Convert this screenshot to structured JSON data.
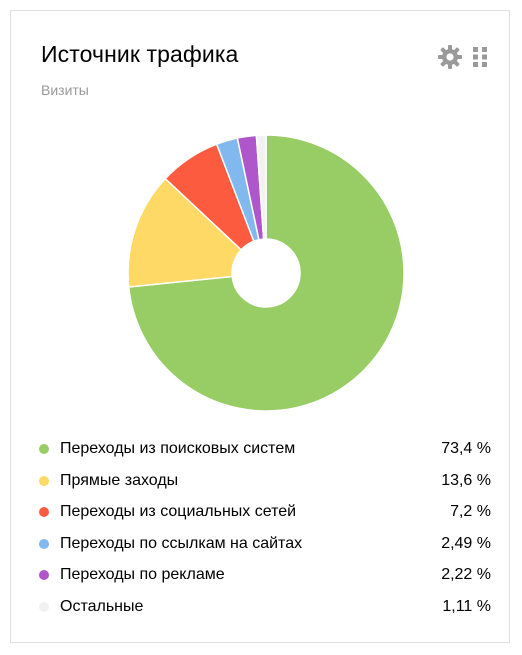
{
  "widget": {
    "title": "Источник трафика",
    "subtitle": "Визиты",
    "settings_icon": "gear-icon",
    "drag_icon": "drag-handle-icon"
  },
  "chart_data": {
    "type": "pie",
    "donut": true,
    "start_angle_deg": 0,
    "direction": "clockwise",
    "categories": [
      "Переходы из поисковых систем",
      "Прямые заходы",
      "Переходы из социальных сетей",
      "Переходы по ссылкам на сайтах",
      "Переходы по рекламе",
      "Остальные"
    ],
    "values": [
      73.4,
      13.6,
      7.2,
      2.49,
      2.22,
      1.11
    ],
    "value_labels": [
      "73,4 %",
      "13,6 %",
      "7,2 %",
      "2,49 %",
      "2,22 %",
      "1,11 %"
    ],
    "colors": [
      "#98cc64",
      "#fed966",
      "#fc5b3f",
      "#81b8ee",
      "#ae56ca",
      "#f2f2f2"
    ],
    "legend": "bottom"
  }
}
